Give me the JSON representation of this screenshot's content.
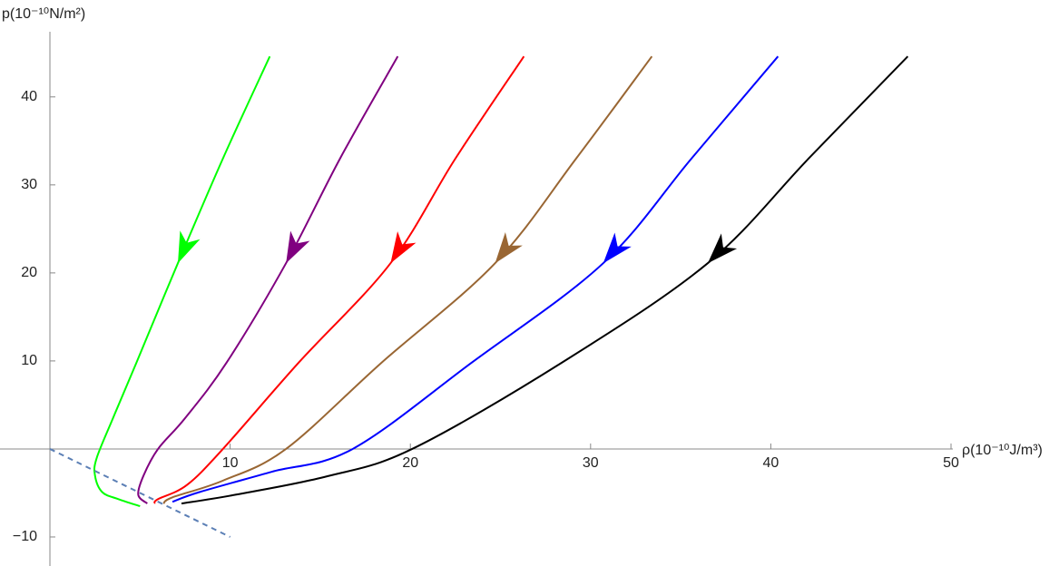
{
  "chart_data": {
    "type": "line",
    "x_label": "ρ(10⁻¹⁰J/m³)",
    "y_label": "p(10⁻¹⁰N/m²)",
    "xlim": [
      -2.77,
      50.1
    ],
    "ylim": [
      -13.3,
      47.4
    ],
    "xticks": [
      10,
      20,
      30,
      40,
      50
    ],
    "yticks": [
      {
        "value": -10,
        "label": "−10"
      },
      10,
      20,
      30,
      40
    ],
    "arrows": true,
    "series": [
      {
        "color": "#00ff00",
        "x": [
          12.2,
          9.6,
          7.1,
          4.8,
          3.5,
          2.6,
          2.5,
          2.9,
          3.8,
          5.0
        ],
        "values": [
          44.6,
          33,
          21.1,
          9.8,
          3.5,
          -1.0,
          -3.0,
          -4.9,
          -5.7,
          -6.5
        ]
      },
      {
        "color": "#800080",
        "x": [
          19.3,
          16.1,
          13.1,
          9.8,
          7.5,
          6.0,
          5.2,
          4.9,
          5.4
        ],
        "values": [
          44.6,
          33,
          21.1,
          9.8,
          3.5,
          0,
          -3,
          -5.2,
          -6.2
        ]
      },
      {
        "color": "#ff0000",
        "x": [
          26.3,
          22.5,
          18.9,
          13.8,
          9.6,
          7.6,
          6.0,
          5.8
        ],
        "values": [
          44.6,
          33,
          21.1,
          9.8,
          0,
          -4.1,
          -5.7,
          -6.2
        ]
      },
      {
        "color": "#996633",
        "x": [
          33.4,
          29.2,
          24.7,
          18.4,
          13.1,
          9.6,
          6.8,
          6.3
        ],
        "values": [
          44.6,
          33,
          21.1,
          9.8,
          0,
          -3.6,
          -5.5,
          -6.2
        ]
      },
      {
        "color": "#0000ff",
        "x": [
          40.4,
          35.6,
          30.7,
          23.4,
          16.8,
          12.3,
          8.3,
          6.8
        ],
        "values": [
          44.6,
          33,
          21.1,
          9.8,
          0,
          -2.6,
          -4.9,
          -6.0
        ]
      },
      {
        "color": "#000000",
        "x": [
          47.6,
          42.1,
          36.5,
          28.4,
          20.1,
          15.4,
          10.3,
          7.3
        ],
        "values": [
          44.6,
          33,
          21.1,
          9.8,
          0,
          -3.1,
          -5.2,
          -6.2
        ]
      },
      {
        "color": "#5b7fb5",
        "dashed": true,
        "x": [
          0,
          10
        ],
        "values": [
          0,
          -10
        ]
      }
    ]
  }
}
